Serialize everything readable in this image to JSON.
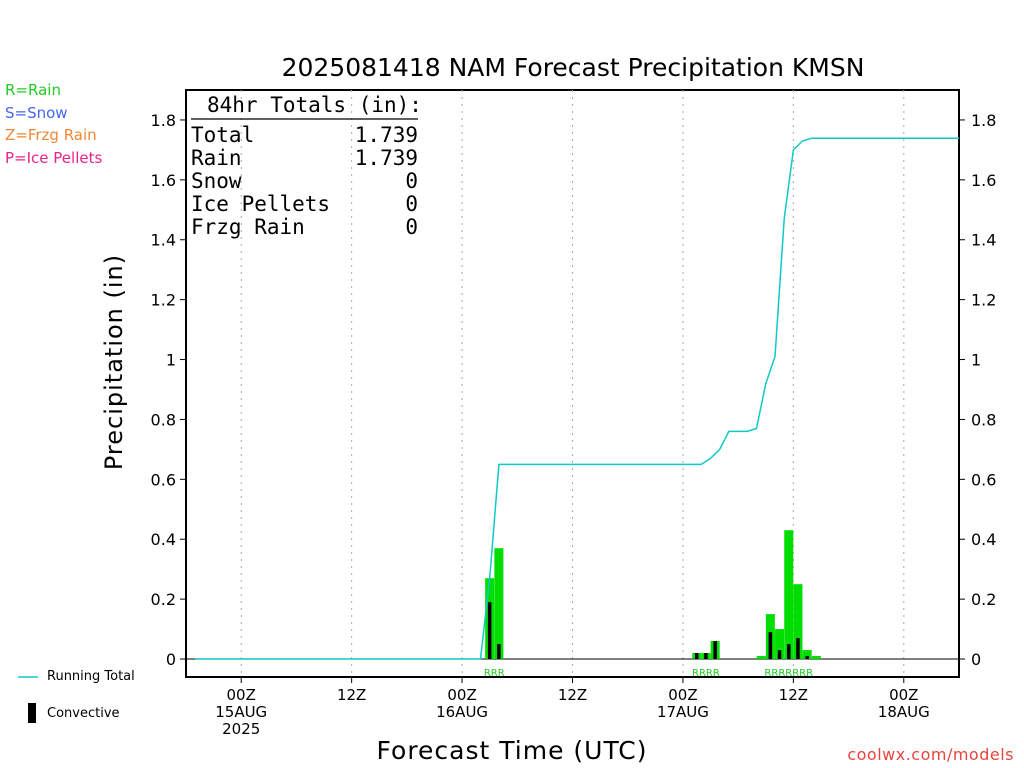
{
  "legend_ptypes": [
    {
      "text": "R=Rain",
      "color": "#22cc22"
    },
    {
      "text": "S=Snow",
      "color": "#4466ee"
    },
    {
      "text": "Z=Frzg Rain",
      "color": "#ee8833"
    },
    {
      "text": "P=Ice Pellets",
      "color": "#ee2288"
    }
  ],
  "legend_bottom": {
    "running_total": "Running Total",
    "convective": "Convective"
  },
  "credit": "coolwx.com/models",
  "totals": {
    "header": "84hr Totals (in):",
    "rows": [
      {
        "label": "Total",
        "value": "1.739"
      },
      {
        "label": "Rain",
        "value": "1.739"
      },
      {
        "label": "Snow",
        "value": "0"
      },
      {
        "label": "Ice Pellets",
        "value": "0"
      },
      {
        "label": "Frzg Rain",
        "value": "0"
      }
    ]
  },
  "chart_data": {
    "type": "bar",
    "title": "2025081418 NAM Forecast Precipitation KMSN",
    "xlabel": "Forecast Time (UTC)",
    "ylabel": "Precipitation (in)",
    "ylim": [
      -0.06,
      1.9
    ],
    "yticks": [
      0,
      0.2,
      0.4,
      0.6,
      0.8,
      1,
      1.2,
      1.4,
      1.6,
      1.8
    ],
    "ytick_labels": [
      "0",
      "0.2",
      "0.4",
      "0.6",
      "0.8",
      "1",
      "1.2",
      "1.4",
      "1.6",
      "1.8"
    ],
    "x_unit": "hours after 2025-08-15 00Z",
    "xlim": [
      -6,
      78
    ],
    "xticks": [
      {
        "x": 0,
        "label": [
          "00Z",
          "15AUG",
          "2025"
        ]
      },
      {
        "x": 12,
        "label": [
          "12Z"
        ]
      },
      {
        "x": 24,
        "label": [
          "00Z",
          "16AUG"
        ]
      },
      {
        "x": 36,
        "label": [
          "12Z"
        ]
      },
      {
        "x": 48,
        "label": [
          "00Z",
          "17AUG"
        ]
      },
      {
        "x": 60,
        "label": [
          "12Z"
        ]
      },
      {
        "x": 72,
        "label": [
          "00Z",
          "18AUG"
        ]
      }
    ],
    "grid": "vertical dotted",
    "colors": {
      "rain": "#00dd00",
      "convective": "#000000",
      "running_total": "#11c8c8"
    },
    "bars_rain": [
      {
        "x": 27,
        "value": 0.27
      },
      {
        "x": 28,
        "value": 0.37
      },
      {
        "x": 49.5,
        "value": 0.02
      },
      {
        "x": 50.5,
        "value": 0.02
      },
      {
        "x": 51.5,
        "value": 0.06
      },
      {
        "x": 56.5,
        "value": 0.01
      },
      {
        "x": 57.5,
        "value": 0.15
      },
      {
        "x": 58.5,
        "value": 0.1
      },
      {
        "x": 59.5,
        "value": 0.43
      },
      {
        "x": 60.5,
        "value": 0.25
      },
      {
        "x": 61.5,
        "value": 0.03
      },
      {
        "x": 62.5,
        "value": 0.01
      }
    ],
    "bars_convective": [
      {
        "x": 27,
        "value": 0.19
      },
      {
        "x": 28,
        "value": 0.05
      },
      {
        "x": 49.5,
        "value": 0.02
      },
      {
        "x": 50.5,
        "value": 0.02
      },
      {
        "x": 51.5,
        "value": 0.06
      },
      {
        "x": 57.5,
        "value": 0.09
      },
      {
        "x": 58.5,
        "value": 0.03
      },
      {
        "x": 59.5,
        "value": 0.05
      },
      {
        "x": 60.5,
        "value": 0.07
      },
      {
        "x": 61.5,
        "value": 0.01
      }
    ],
    "running_total": {
      "name": "Running Total",
      "x": [
        -5,
        26,
        27,
        28,
        50,
        51,
        52,
        53,
        55,
        56,
        57,
        58,
        59,
        60,
        61,
        62,
        78
      ],
      "y": [
        0,
        0,
        0.27,
        0.65,
        0.65,
        0.67,
        0.7,
        0.76,
        0.76,
        0.77,
        0.92,
        1.01,
        1.47,
        1.7,
        1.73,
        1.739,
        1.739
      ]
    },
    "ptype_markers": [
      {
        "text": "RRR",
        "x": 27.5
      },
      {
        "text": "RRRR",
        "x": 50.5
      },
      {
        "text": "RRRRRRR",
        "x": 59.5
      }
    ]
  }
}
